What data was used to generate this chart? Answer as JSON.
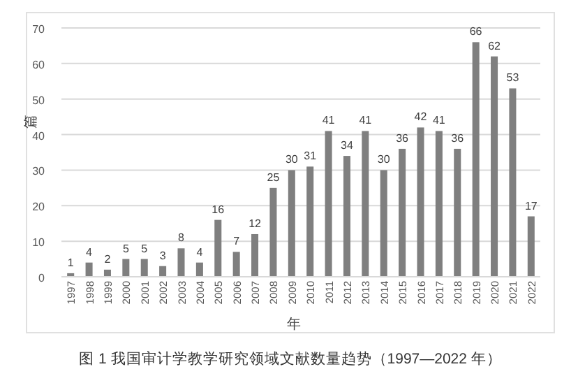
{
  "chart_data": {
    "type": "bar",
    "categories": [
      "1997",
      "1998",
      "1999",
      "2000",
      "2001",
      "2002",
      "2003",
      "2004",
      "2005",
      "2006",
      "2007",
      "2008",
      "2009",
      "2010",
      "2011",
      "2012",
      "2013",
      "2014",
      "2015",
      "2016",
      "2017",
      "2018",
      "2019",
      "2020",
      "2021",
      "2022"
    ],
    "values": [
      1,
      4,
      2,
      5,
      5,
      3,
      8,
      4,
      16,
      7,
      12,
      25,
      30,
      31,
      41,
      34,
      41,
      30,
      36,
      42,
      41,
      36,
      66,
      62,
      53,
      17
    ],
    "color": "#7f7f7f",
    "ylim": [
      0,
      70
    ],
    "yticks": [
      0,
      10,
      20,
      30,
      40,
      50,
      60,
      70
    ],
    "grid": "y",
    "data_labels": true,
    "xlabel": "年",
    "ylabel": "篇",
    "annotations": [
      "图 1  我国审计学教学研究领域文献数量趋势（1997—2022 年）"
    ]
  }
}
